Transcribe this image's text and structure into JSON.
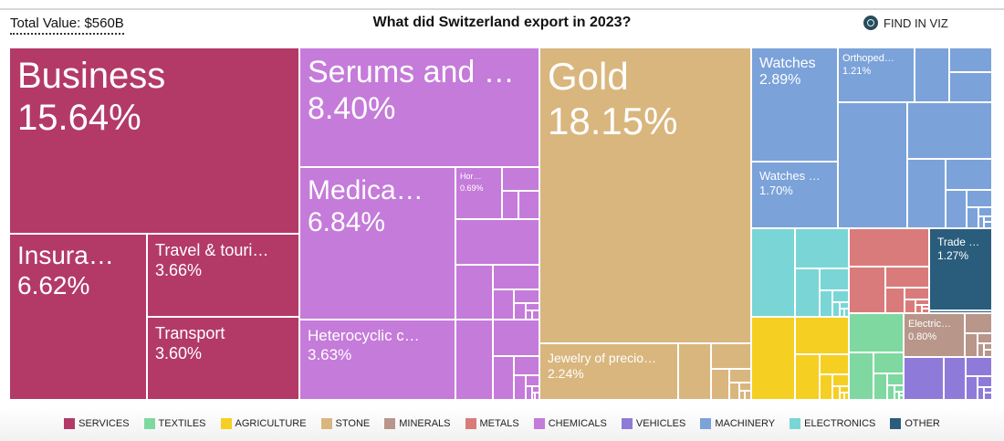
{
  "header": {
    "total_value": "Total Value: $560B",
    "title": "What did Switzerland export in 2023?",
    "find_label": "FIND IN VIZ",
    "find_icon": "search-icon"
  },
  "colors": {
    "SERVICES": "#B33A67",
    "TEXTILES": "#7ED8A0",
    "AGRICULTURE": "#F5CF21",
    "STONE": "#D9B67E",
    "MINERALS": "#B8968A",
    "METALS": "#DA7B7B",
    "CHEMICALS": "#C57BD9",
    "VEHICLES": "#8E7BD9",
    "MACHINERY": "#7BA2D9",
    "ELECTRONICS": "#7AD6D6",
    "OTHER": "#2A5D7C"
  },
  "legend": [
    "SERVICES",
    "TEXTILES",
    "AGRICULTURE",
    "STONE",
    "MINERALS",
    "METALS",
    "CHEMICALS",
    "VEHICLES",
    "MACHINERY",
    "ELECTRONICS",
    "OTHER"
  ],
  "chart_data": {
    "type": "treemap",
    "title": "What did Switzerland export in 2023?",
    "total": "$560B",
    "items": [
      {
        "label": "Business",
        "pct": "15.64%",
        "value": 15.64,
        "category": "SERVICES"
      },
      {
        "label": "Insura…",
        "pct": "6.62%",
        "value": 6.62,
        "category": "SERVICES"
      },
      {
        "label": "Travel & touri…",
        "pct": "3.66%",
        "value": 3.66,
        "category": "SERVICES"
      },
      {
        "label": "Transport",
        "pct": "3.60%",
        "value": 3.6,
        "category": "SERVICES"
      },
      {
        "label": "Serums and …",
        "pct": "8.40%",
        "value": 8.4,
        "category": "CHEMICALS"
      },
      {
        "label": "Medica…",
        "pct": "6.84%",
        "value": 6.84,
        "category": "CHEMICALS"
      },
      {
        "label": "Hor…",
        "pct": "0.69%",
        "value": 0.69,
        "category": "CHEMICALS"
      },
      {
        "label": "Heterocyclic c…",
        "pct": "3.63%",
        "value": 3.63,
        "category": "CHEMICALS"
      },
      {
        "label": "Gold",
        "pct": "18.15%",
        "value": 18.15,
        "category": "STONE"
      },
      {
        "label": "Jewelry of precio…",
        "pct": "2.24%",
        "value": 2.24,
        "category": "STONE"
      },
      {
        "label": "Watches",
        "pct": "2.89%",
        "value": 2.89,
        "category": "MACHINERY"
      },
      {
        "label": "Watches …",
        "pct": "1.70%",
        "value": 1.7,
        "category": "MACHINERY"
      },
      {
        "label": "Orthoped…",
        "pct": "1.21%",
        "value": 1.21,
        "category": "MACHINERY"
      },
      {
        "label": "Trade …",
        "pct": "1.27%",
        "value": 1.27,
        "category": "OTHER"
      },
      {
        "label": "Electric…",
        "pct": "0.80%",
        "value": 0.8,
        "category": "MINERALS"
      }
    ]
  }
}
